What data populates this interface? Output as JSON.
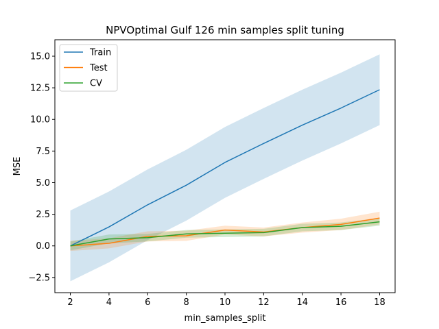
{
  "chart_data": {
    "type": "line",
    "title": "NPVOptimal Gulf 126 min samples split tuning",
    "xlabel": "min_samples_split",
    "ylabel": "MSE",
    "x": [
      2,
      4,
      6,
      8,
      10,
      12,
      14,
      16,
      18
    ],
    "xticks": [
      "2",
      "4",
      "6",
      "8",
      "10",
      "12",
      "14",
      "16",
      "18"
    ],
    "xlim": [
      1.2,
      18.8
    ],
    "ylim": [
      -3.7,
      16.3
    ],
    "yticks": [
      -2.5,
      0.0,
      2.5,
      5.0,
      7.5,
      10.0,
      12.5,
      15.0
    ],
    "ytick_labels": [
      "−2.5",
      "0.0",
      "2.5",
      "5.0",
      "7.5",
      "10.0",
      "12.5",
      "15.0"
    ],
    "legend_position": "top-left",
    "grid": false,
    "series": [
      {
        "name": "Train",
        "color": "#1f77b4",
        "values": [
          0.0,
          1.5,
          3.25,
          4.8,
          6.6,
          8.1,
          9.55,
          10.9,
          12.35
        ],
        "band_upper": [
          2.8,
          4.3,
          6.05,
          7.6,
          9.4,
          10.9,
          12.35,
          13.7,
          15.15
        ],
        "band_lower": [
          -2.8,
          -1.3,
          0.45,
          2.0,
          3.8,
          5.3,
          6.75,
          8.1,
          9.55
        ]
      },
      {
        "name": "Test",
        "color": "#ff7f0e",
        "values": [
          0.0,
          0.2,
          0.75,
          0.8,
          1.25,
          1.1,
          1.45,
          1.7,
          2.2
        ],
        "band_upper": [
          0.4,
          0.6,
          1.15,
          1.2,
          1.6,
          1.45,
          1.85,
          2.15,
          2.7
        ],
        "band_lower": [
          -0.4,
          -0.2,
          0.35,
          0.4,
          0.9,
          0.75,
          1.05,
          1.25,
          1.7
        ]
      },
      {
        "name": "CV",
        "color": "#2ca02c",
        "values": [
          0.0,
          0.55,
          0.65,
          0.95,
          1.0,
          1.05,
          1.45,
          1.55,
          1.9
        ],
        "band_upper": [
          0.35,
          0.9,
          0.95,
          1.25,
          1.3,
          1.35,
          1.75,
          1.85,
          2.2
        ],
        "band_lower": [
          -0.35,
          0.2,
          0.35,
          0.65,
          0.7,
          0.75,
          1.15,
          1.25,
          1.6
        ]
      }
    ]
  }
}
